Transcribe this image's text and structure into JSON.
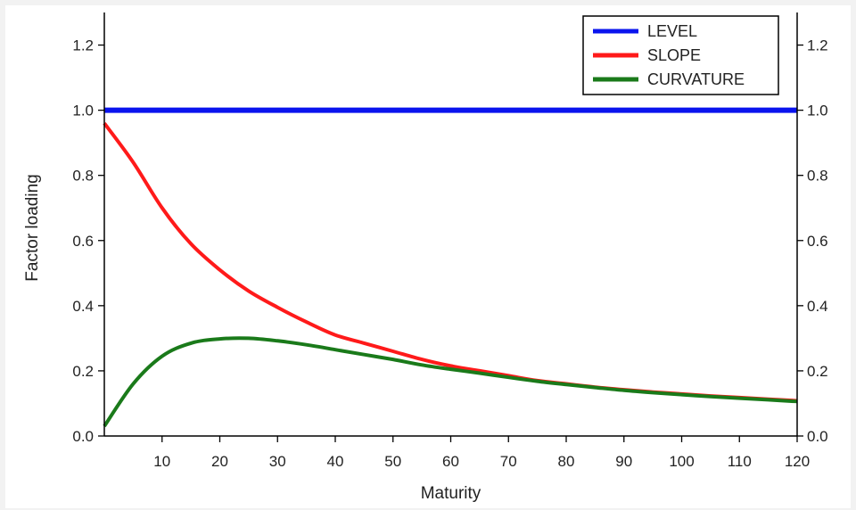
{
  "chart_data": {
    "type": "line",
    "title": "",
    "xlabel": "Maturity",
    "ylabel": "Factor loading",
    "xlim": [
      0,
      120
    ],
    "ylim": [
      0,
      1.3
    ],
    "x_ticks": [
      10,
      20,
      30,
      40,
      50,
      60,
      70,
      80,
      90,
      100,
      110,
      120
    ],
    "y_ticks": [
      0.0,
      0.2,
      0.4,
      0.6,
      0.8,
      1.0,
      1.2
    ],
    "y_tick_labels": [
      "0.0",
      "0.2",
      "0.4",
      "0.6",
      "0.8",
      "1.0",
      "1.2"
    ],
    "secondary_y_axis": true,
    "grid": false,
    "legend_position": "top-right",
    "x": [
      0,
      5,
      10,
      15,
      20,
      25,
      30,
      35,
      40,
      45,
      50,
      55,
      60,
      65,
      70,
      75,
      80,
      85,
      90,
      95,
      100,
      105,
      110,
      115,
      120
    ],
    "series": [
      {
        "name": "LEVEL",
        "color": "#0a14ee",
        "values": [
          1.0,
          1.0,
          1.0,
          1.0,
          1.0,
          1.0,
          1.0,
          1.0,
          1.0,
          1.0,
          1.0,
          1.0,
          1.0,
          1.0,
          1.0,
          1.0,
          1.0,
          1.0,
          1.0,
          1.0,
          1.0,
          1.0,
          1.0,
          1.0,
          1.0
        ]
      },
      {
        "name": "SLOPE",
        "color": "#ff1a1a",
        "values": [
          0.96,
          0.84,
          0.7,
          0.59,
          0.51,
          0.445,
          0.395,
          0.35,
          0.31,
          0.285,
          0.26,
          0.235,
          0.215,
          0.2,
          0.185,
          0.17,
          0.16,
          0.15,
          0.142,
          0.135,
          0.129,
          0.123,
          0.118,
          0.113,
          0.108
        ]
      },
      {
        "name": "CURVATURE",
        "color": "#1a7a1a",
        "values": [
          0.03,
          0.16,
          0.245,
          0.285,
          0.298,
          0.3,
          0.292,
          0.28,
          0.265,
          0.25,
          0.235,
          0.218,
          0.205,
          0.193,
          0.18,
          0.168,
          0.158,
          0.149,
          0.14,
          0.133,
          0.127,
          0.121,
          0.116,
          0.111,
          0.106
        ]
      }
    ]
  }
}
